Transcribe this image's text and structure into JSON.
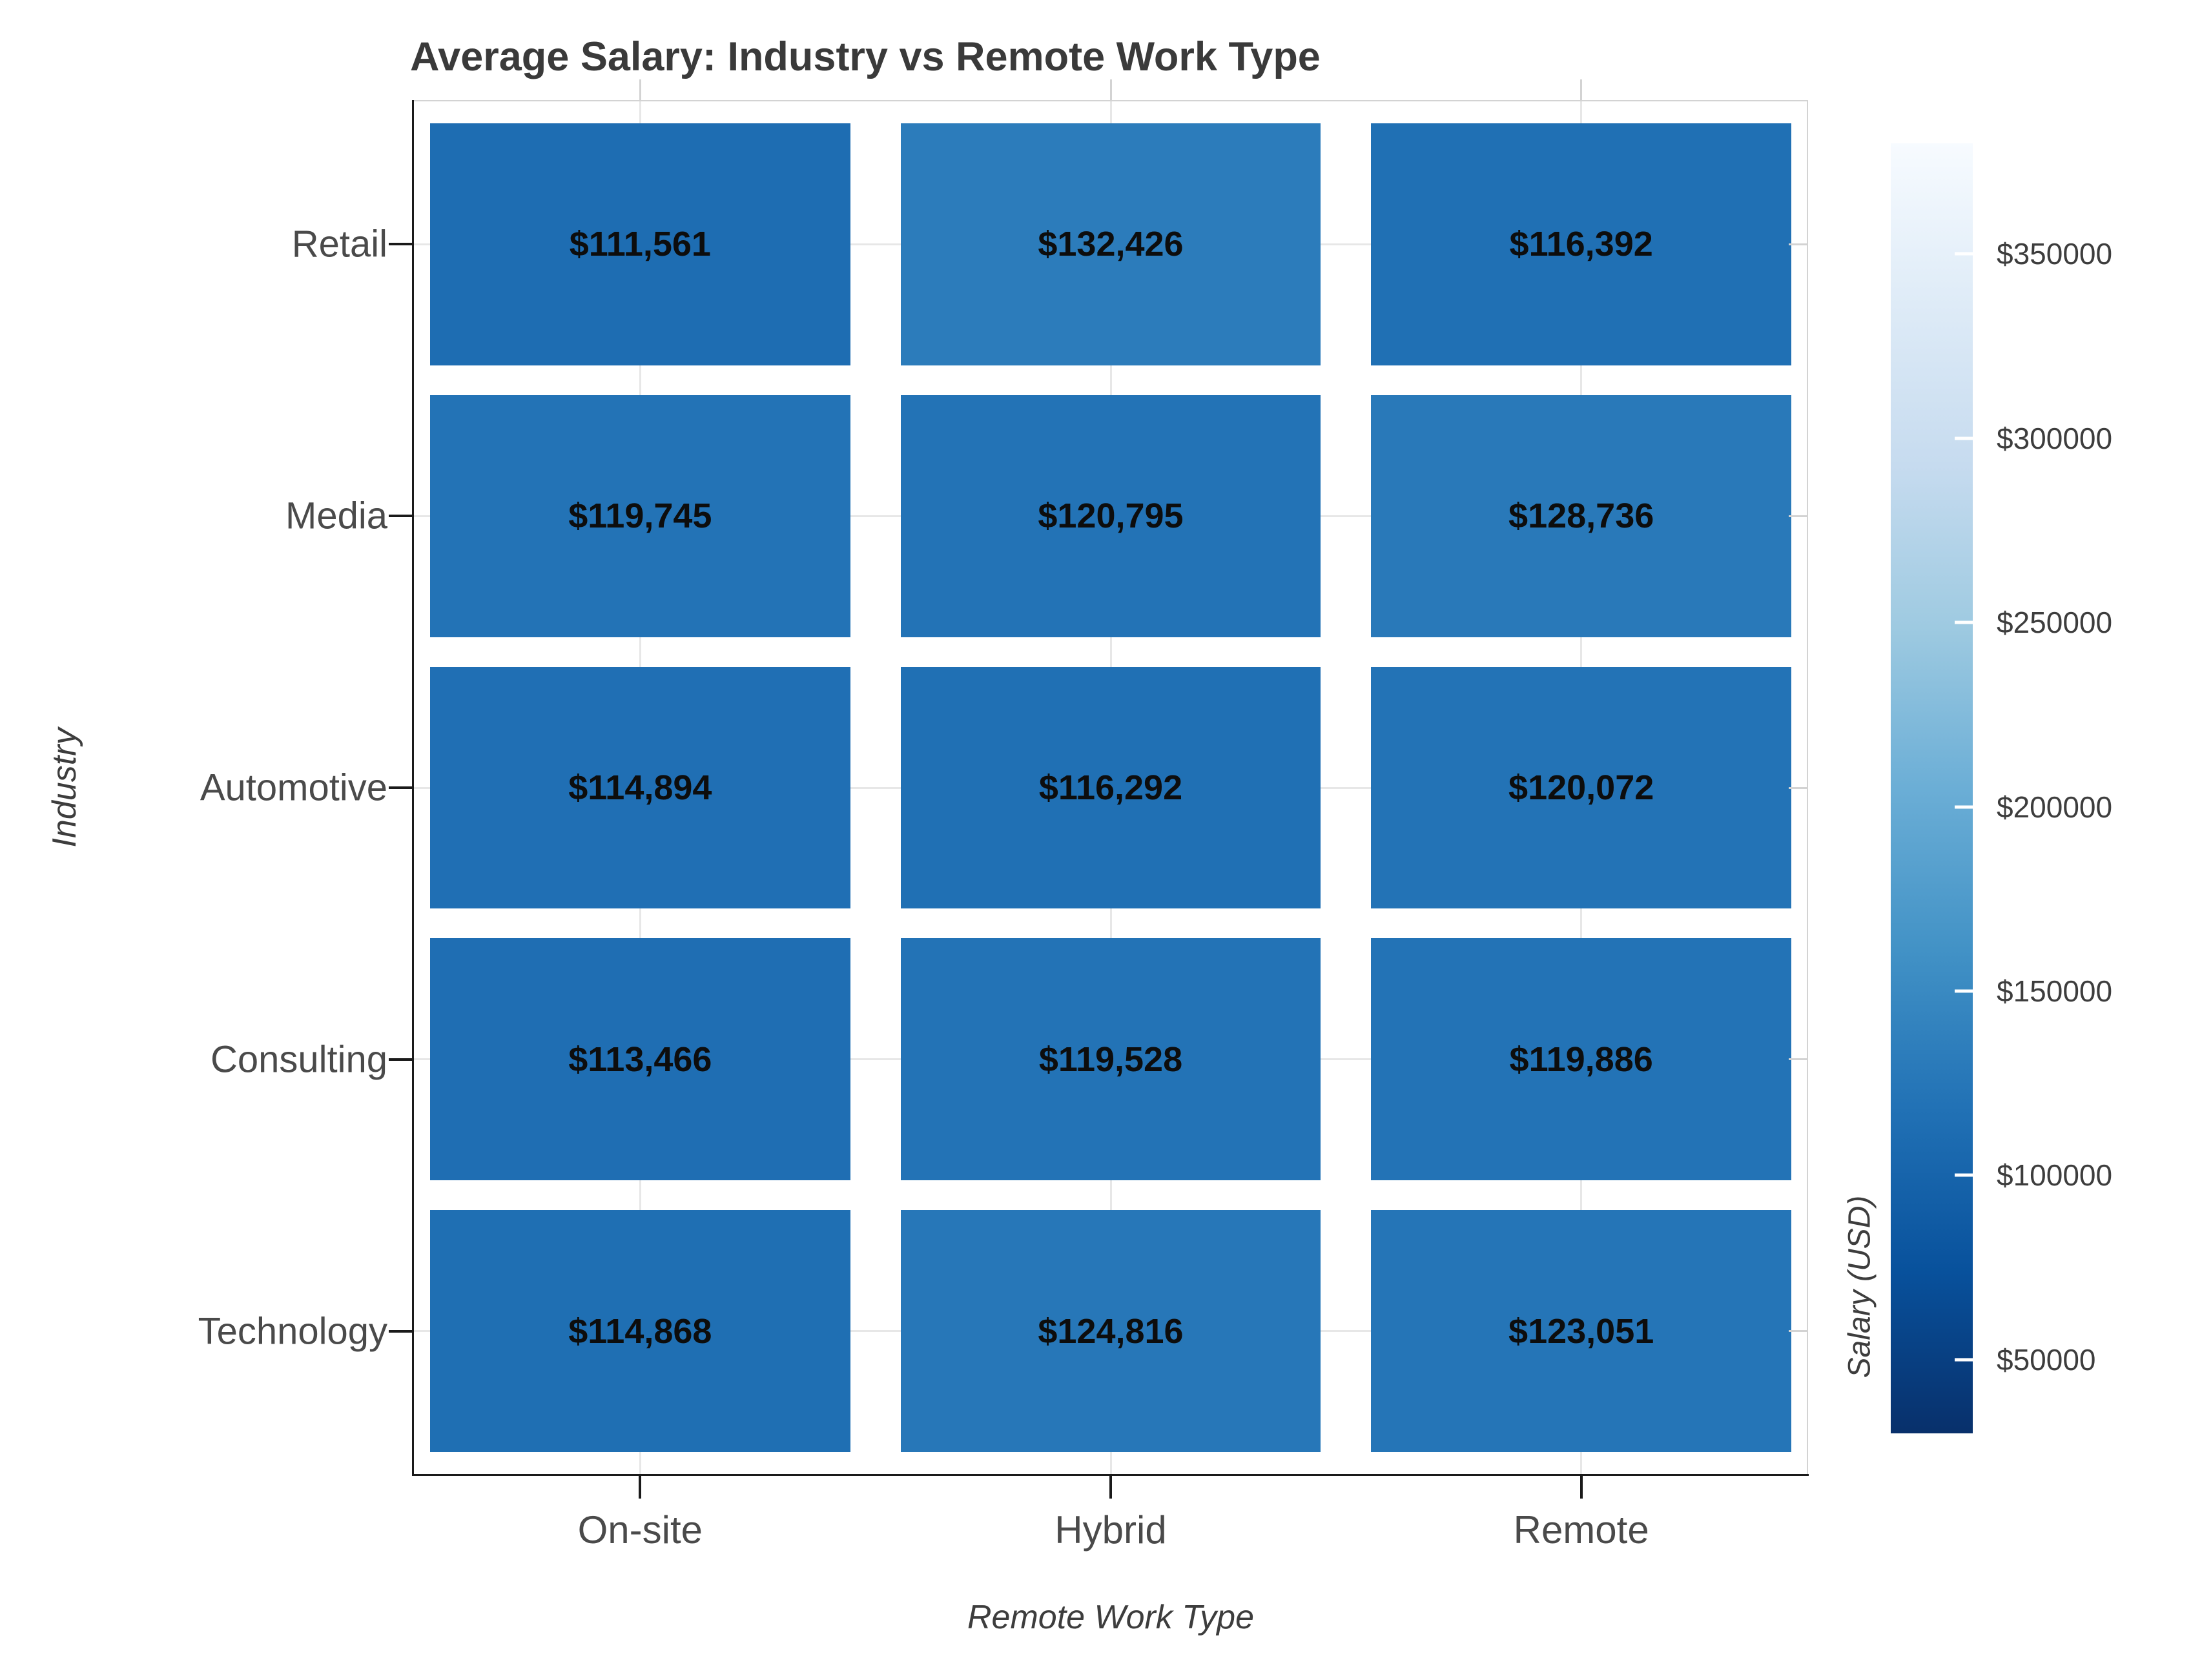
{
  "title": "Average Salary: Industry vs Remote Work Type",
  "x_axis": {
    "label": "Remote Work Type",
    "categories": [
      "On-site",
      "Hybrid",
      "Remote"
    ]
  },
  "y_axis": {
    "label": "Industry",
    "categories": [
      "Retail",
      "Media",
      "Automotive",
      "Consulting",
      "Technology"
    ]
  },
  "colorbar": {
    "label": "Salary (USD)",
    "tick_labels": [
      "$350000",
      "$300000",
      "$250000",
      "$200000",
      "$150000",
      "$100000",
      "$50000"
    ],
    "tick_values": [
      350000,
      300000,
      250000,
      200000,
      150000,
      100000,
      50000
    ],
    "vmin": 30000,
    "vmax": 380000
  },
  "chart_data": {
    "type": "heatmap",
    "title": "Average Salary: Industry vs Remote Work Type",
    "xlabel": "Remote Work Type",
    "ylabel": "Industry",
    "columns": [
      "On-site",
      "Hybrid",
      "Remote"
    ],
    "rows": [
      "Retail",
      "Media",
      "Automotive",
      "Consulting",
      "Technology"
    ],
    "values": [
      [
        111561,
        132426,
        116392
      ],
      [
        119745,
        120795,
        128736
      ],
      [
        114894,
        116292,
        120072
      ],
      [
        113466,
        119528,
        119886
      ],
      [
        114868,
        124816,
        123051
      ]
    ],
    "cell_labels": [
      [
        "$111,561",
        "$132,426",
        "$116,392"
      ],
      [
        "$119,745",
        "$120,795",
        "$128,736"
      ],
      [
        "$114,894",
        "$116,292",
        "$120,072"
      ],
      [
        "$113,466",
        "$119,528",
        "$119,886"
      ],
      [
        "$114,868",
        "$124,816",
        "$123,051"
      ]
    ],
    "colormap": "Blues_r",
    "colormap_stops": [
      "#f7fbff",
      "#deebf7",
      "#c6dbef",
      "#9ecae1",
      "#6baed6",
      "#4292c6",
      "#2171b5",
      "#08519c",
      "#08306b"
    ],
    "colorbar_label": "Salary (USD)",
    "colorbar_range": [
      30000,
      380000
    ],
    "grid": true,
    "legend_position": "right-colorbar",
    "cell_text_color": "#0d0d0d"
  }
}
